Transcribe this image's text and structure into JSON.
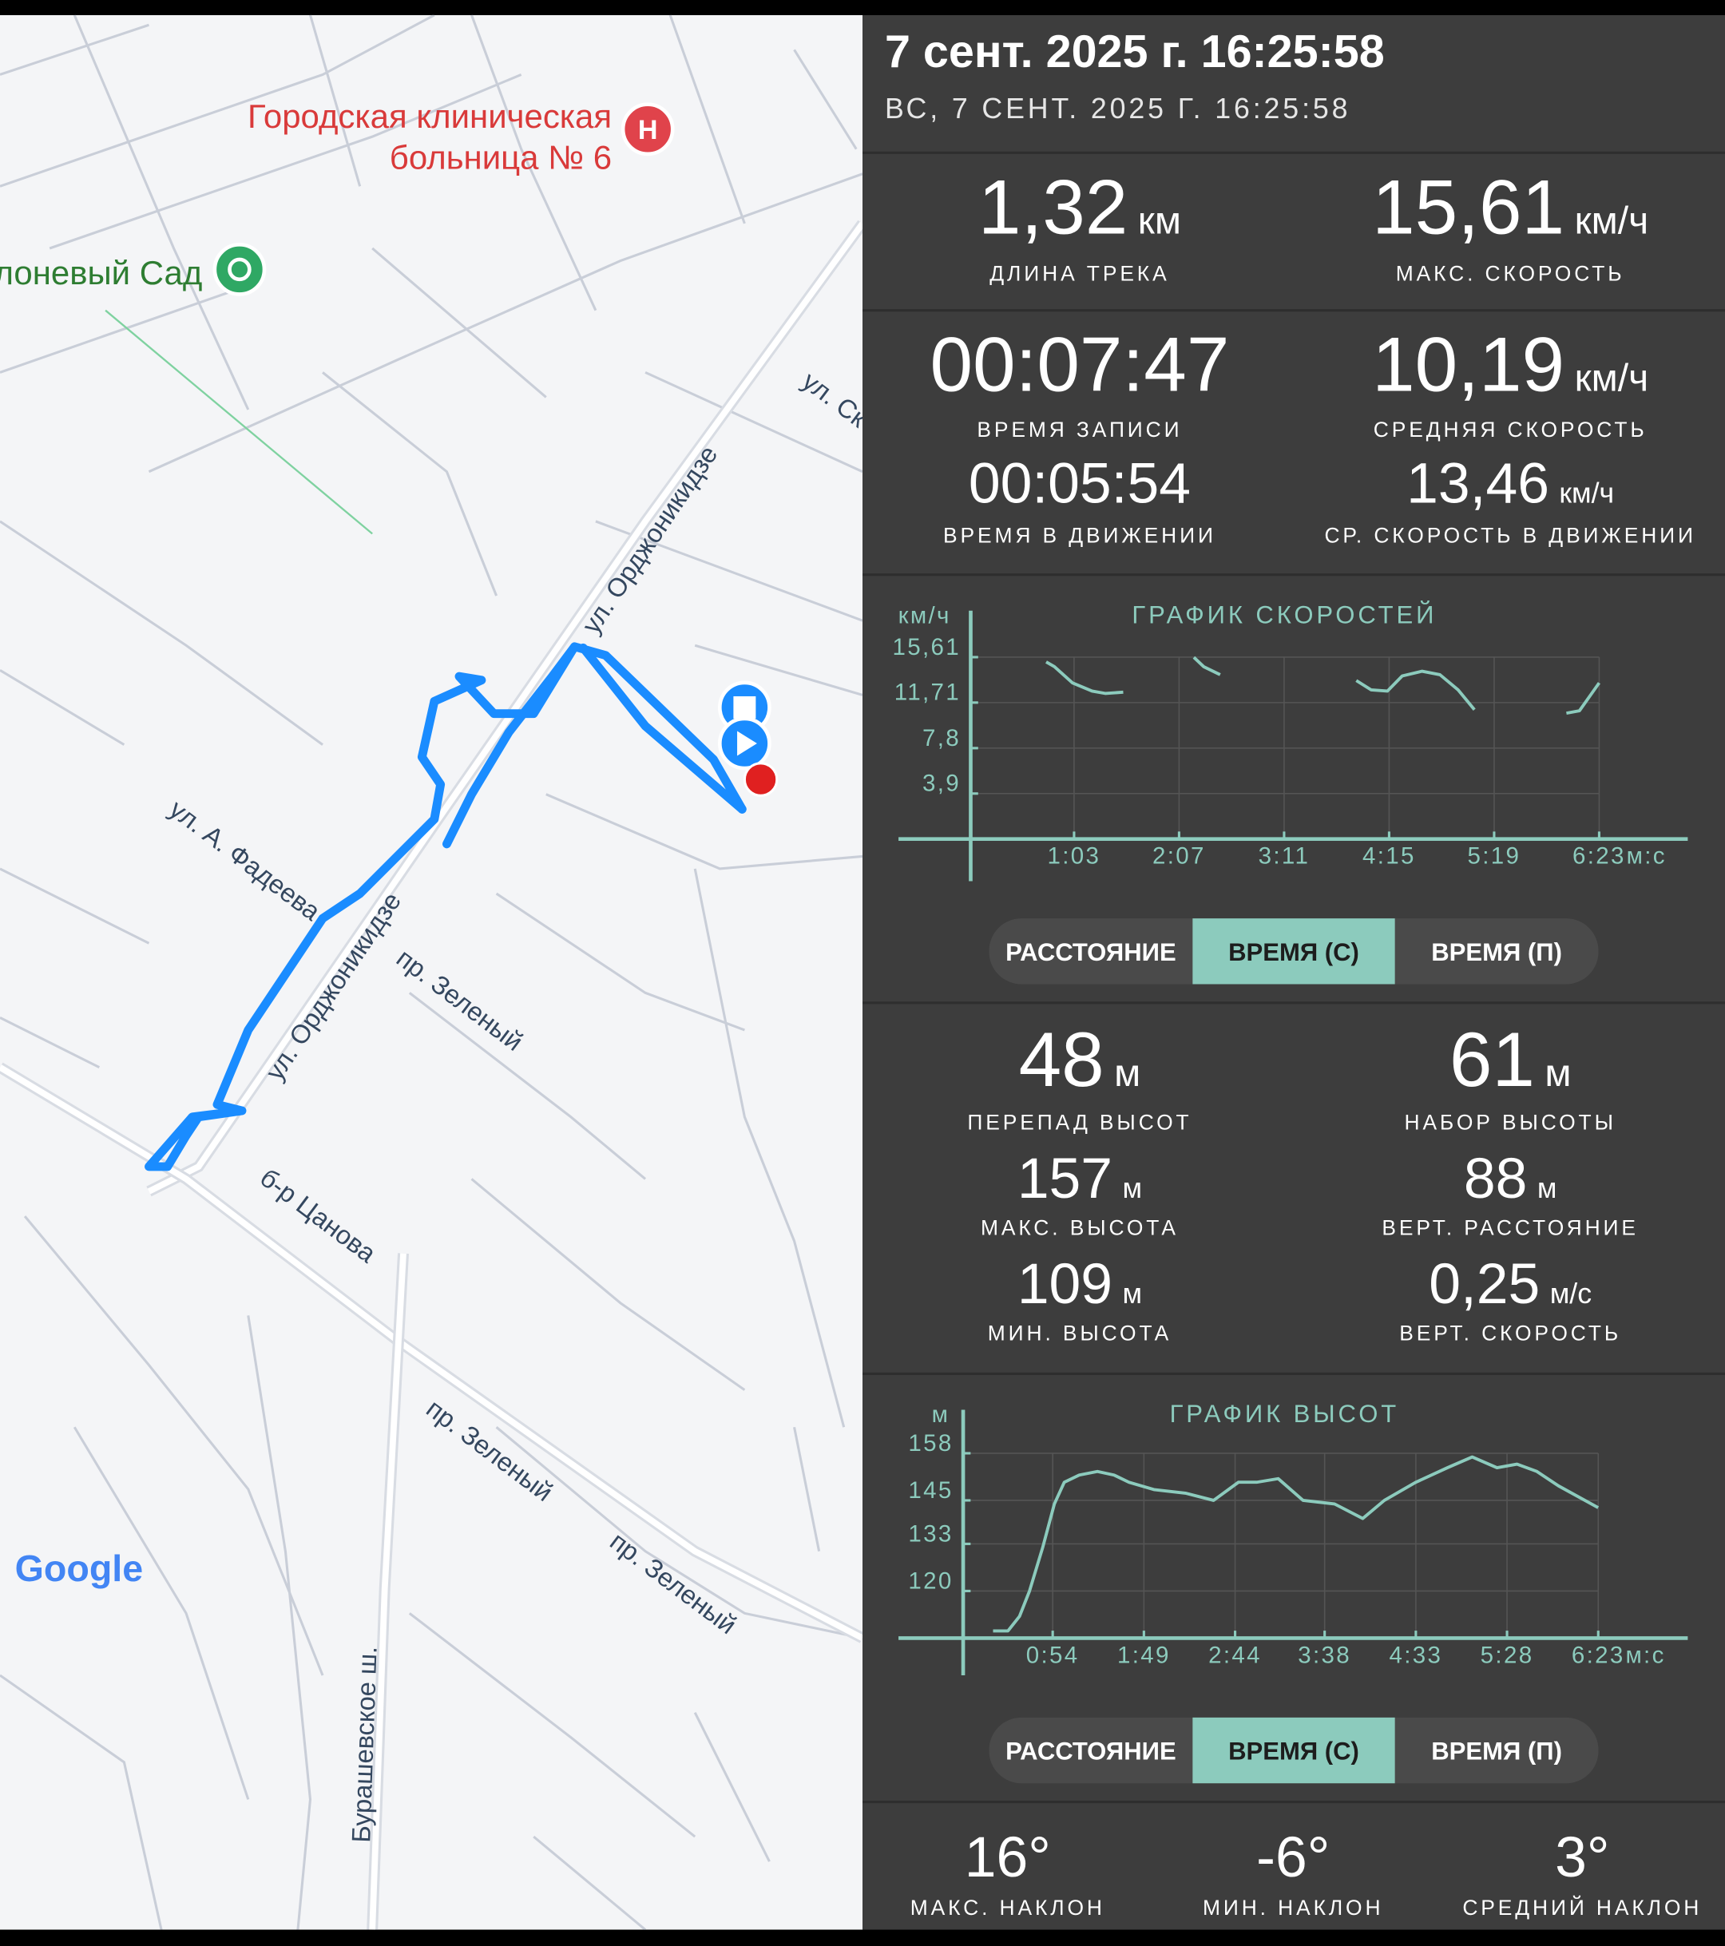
{
  "header": {
    "title": "7 сент. 2025 г. 16:25:58",
    "subtitle": "ВС, 7 СЕНТ. 2025 Г. 16:25:58"
  },
  "stats": [
    {
      "value": "1,32",
      "unit": "км",
      "label": "ДЛИНА ТРЕКА"
    },
    {
      "value": "15,61",
      "unit": "км/ч",
      "label": "МАКС. СКОРОСТЬ"
    },
    {
      "value": "00:07:47",
      "label": "ВРЕМЯ ЗАПИСИ"
    },
    {
      "value": "10,19",
      "unit": "км/ч",
      "label": "СРЕДНЯЯ СКОРОСТЬ"
    },
    {
      "value": "00:05:54",
      "label": "ВРЕМЯ В ДВИЖЕНИИ"
    },
    {
      "value": "13,46",
      "unit": "км/ч",
      "label": "СР. СКОРОСТЬ В ДВИЖЕНИИ"
    }
  ],
  "chart_data": [
    {
      "type": "line",
      "title": "ГРАФИК СКОРОСТЕЙ",
      "y_label": "км/ч",
      "x_label": "м:с",
      "color": "#8ccbbd",
      "grid": true,
      "x": [
        46,
        51,
        62,
        74,
        82,
        93,
        115,
        136,
        142,
        152,
        190,
        235,
        244,
        254,
        263,
        275,
        286,
        297,
        307,
        335,
        363,
        371,
        383
      ],
      "values": [
        15.2,
        14.8,
        13.4,
        12.7,
        12.5,
        12.6,
        null,
        15.6,
        14.8,
        14.1,
        null,
        13.6,
        12.8,
        12.7,
        14.0,
        14.4,
        14.1,
        12.8,
        11.1,
        null,
        10.8,
        11.0,
        13.4
      ],
      "xlim": [
        -44,
        437
      ],
      "ylim": [
        0,
        19.6
      ],
      "xticks": [
        {
          "value": 63,
          "label": "1:03"
        },
        {
          "value": 127,
          "label": "2:07"
        },
        {
          "value": 191,
          "label": "3:11"
        },
        {
          "value": 255,
          "label": "4:15"
        },
        {
          "value": 319,
          "label": "5:19"
        },
        {
          "value": 383,
          "label": "6:23"
        }
      ],
      "yticks": [
        {
          "value": 15.61,
          "label": "15,61"
        },
        {
          "value": 11.71,
          "label": "11,71"
        },
        {
          "value": 7.8,
          "label": "7,8"
        },
        {
          "value": 3.9,
          "label": "3,9"
        }
      ]
    },
    {
      "type": "line",
      "title": "ГРАФИК ВЫСОТ",
      "y_label": "м",
      "x_label": "м:с",
      "color": "#8ccbbd",
      "grid": true,
      "x": [
        18,
        27,
        34,
        40,
        48,
        55,
        61,
        70,
        81,
        91,
        100,
        115,
        134,
        151,
        166,
        177,
        190,
        205,
        224,
        241,
        254,
        273,
        292,
        307,
        322,
        334,
        346,
        359,
        383
      ],
      "values": [
        109,
        109,
        113,
        120,
        132,
        144,
        150,
        152,
        153,
        152,
        150,
        148,
        147,
        145,
        150,
        150,
        151,
        145,
        144,
        140,
        145,
        150,
        154,
        157,
        154,
        155,
        153,
        149,
        143
      ],
      "xlim": [
        -39,
        437
      ],
      "ylim": [
        107,
        170
      ],
      "xticks": [
        {
          "value": 54,
          "label": "0:54"
        },
        {
          "value": 109,
          "label": "1:49"
        },
        {
          "value": 164,
          "label": "2:44"
        },
        {
          "value": 218,
          "label": "3:38"
        },
        {
          "value": 273,
          "label": "4:33"
        },
        {
          "value": 328,
          "label": "5:28"
        },
        {
          "value": 383,
          "label": "6:23"
        }
      ],
      "yticks": [
        158,
        145,
        133,
        120
      ]
    }
  ],
  "buttons": [
    [
      "РАССТОЯНИЕ",
      "ВРЕМЯ (С)",
      "ВРЕМЯ (П)"
    ],
    [
      "РАССТОЯНИЕ",
      "ВРЕМЯ (С)",
      "ВРЕМЯ (П)"
    ]
  ],
  "elevation_stats": [
    {
      "value": "48",
      "unit": "м",
      "label": "ПЕРЕПАД ВЫСОТ"
    },
    {
      "value": "61",
      "unit": "м",
      "label": "НАБОР ВЫСОТЫ"
    },
    {
      "value": "157",
      "unit": "м",
      "label": "МАКС. ВЫСОТА"
    },
    {
      "value": "88",
      "unit": "м",
      "label": "ВЕРТ. РАССТОЯНИЕ"
    },
    {
      "value": "109",
      "unit": "м",
      "label": "МИН. ВЫСОТА"
    },
    {
      "value": "0,25",
      "unit": "м/с",
      "label": "ВЕРТ. СКОРОСТЬ"
    }
  ],
  "slope_stats": [
    {
      "value": "16°",
      "label": "МАКС. НАКЛОН"
    },
    {
      "value": "-6°",
      "label": "МИН. НАКЛОН"
    },
    {
      "value": "3°",
      "label": "СРЕДНИЙ НАКЛОН"
    }
  ],
  "map": {
    "hospital": [
      "Городская клиническая",
      "больница № 6"
    ],
    "garden": "лоневый Сад",
    "streets": [
      "ул. Орджоникидзе",
      "ул. Орджоникидзе",
      "ул. А. Фадеева",
      "пр. Зеленый",
      "б-р Цанова",
      "пр. Зеленый",
      "пр. Зеленый",
      "Бурашевское ш.",
      "ул. Ск"
    ],
    "logo": "Google"
  }
}
